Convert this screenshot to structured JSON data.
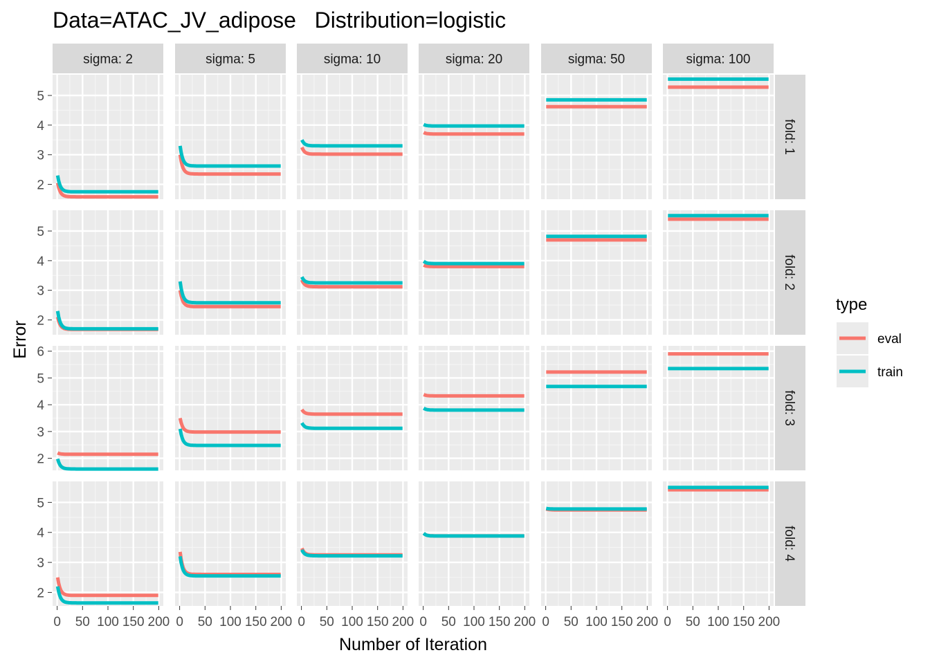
{
  "chart_data": {
    "type": "line",
    "title": "Data=ATAC_JV_adipose   Distribution=logistic",
    "xlabel": "Number of Iteration",
    "ylabel": "Error",
    "xlim": [
      0,
      200
    ],
    "x_ticks": [
      0,
      50,
      100,
      150,
      200
    ],
    "x_tick_labels": [
      "0",
      "50",
      "100",
      "150",
      "200"
    ],
    "grid": true,
    "legend": {
      "title": "type",
      "placement": "right",
      "entries": [
        {
          "label": "eval",
          "color": "#F8766D"
        },
        {
          "label": "train",
          "color": "#00BFC4"
        }
      ]
    },
    "columns": [
      "sigma: 2",
      "sigma: 5",
      "sigma: 10",
      "sigma: 20",
      "sigma: 50",
      "sigma: 100"
    ],
    "rows": [
      {
        "label": "fold: 1",
        "ylim": [
          1.5,
          5.7
        ],
        "y_ticks": [
          2,
          3,
          4,
          5
        ],
        "panels": [
          {
            "eval": {
              "start": 2.05,
              "end": 1.58
            },
            "train": {
              "start": 2.3,
              "end": 1.75
            }
          },
          {
            "eval": {
              "start": 3.0,
              "end": 2.35
            },
            "train": {
              "start": 3.3,
              "end": 2.62
            }
          },
          {
            "eval": {
              "start": 3.25,
              "end": 3.02
            },
            "train": {
              "start": 3.5,
              "end": 3.3
            }
          },
          {
            "eval": {
              "start": 3.75,
              "end": 3.7
            },
            "train": {
              "start": 4.02,
              "end": 3.97
            }
          },
          {
            "eval": {
              "start": 4.62,
              "end": 4.62
            },
            "train": {
              "start": 4.85,
              "end": 4.85
            }
          },
          {
            "eval": {
              "start": 5.28,
              "end": 5.28
            },
            "train": {
              "start": 5.55,
              "end": 5.55
            }
          }
        ]
      },
      {
        "label": "fold: 2",
        "ylim": [
          1.5,
          5.7
        ],
        "y_ticks": [
          2,
          3,
          4,
          5
        ],
        "panels": [
          {
            "eval": {
              "start": 2.1,
              "end": 1.68
            },
            "train": {
              "start": 2.3,
              "end": 1.7
            }
          },
          {
            "eval": {
              "start": 3.0,
              "end": 2.45
            },
            "train": {
              "start": 3.3,
              "end": 2.58
            }
          },
          {
            "eval": {
              "start": 3.35,
              "end": 3.12
            },
            "train": {
              "start": 3.45,
              "end": 3.25
            }
          },
          {
            "eval": {
              "start": 3.85,
              "end": 3.8
            },
            "train": {
              "start": 3.98,
              "end": 3.9
            }
          },
          {
            "eval": {
              "start": 4.7,
              "end": 4.7
            },
            "train": {
              "start": 4.82,
              "end": 4.82
            }
          },
          {
            "eval": {
              "start": 5.4,
              "end": 5.4
            },
            "train": {
              "start": 5.52,
              "end": 5.52
            }
          }
        ]
      },
      {
        "label": "fold: 3",
        "ylim": [
          1.55,
          6.2
        ],
        "y_ticks": [
          2,
          3,
          4,
          5,
          6
        ],
        "panels": [
          {
            "eval": {
              "start": 2.2,
              "end": 2.15
            },
            "train": {
              "start": 1.98,
              "end": 1.6
            }
          },
          {
            "eval": {
              "start": 3.5,
              "end": 2.98
            },
            "train": {
              "start": 3.1,
              "end": 2.48
            }
          },
          {
            "eval": {
              "start": 3.82,
              "end": 3.65
            },
            "train": {
              "start": 3.32,
              "end": 3.12
            }
          },
          {
            "eval": {
              "start": 4.38,
              "end": 4.33
            },
            "train": {
              "start": 3.87,
              "end": 3.8
            }
          },
          {
            "eval": {
              "start": 5.22,
              "end": 5.22
            },
            "train": {
              "start": 4.68,
              "end": 4.68
            }
          },
          {
            "eval": {
              "start": 5.9,
              "end": 5.9
            },
            "train": {
              "start": 5.35,
              "end": 5.35
            }
          }
        ]
      },
      {
        "label": "fold: 4",
        "ylim": [
          1.55,
          5.7
        ],
        "y_ticks": [
          2,
          3,
          4,
          5
        ],
        "panels": [
          {
            "eval": {
              "start": 2.5,
              "end": 1.9
            },
            "train": {
              "start": 2.2,
              "end": 1.65
            }
          },
          {
            "eval": {
              "start": 3.35,
              "end": 2.6
            },
            "train": {
              "start": 3.2,
              "end": 2.55
            }
          },
          {
            "eval": {
              "start": 3.47,
              "end": 3.25
            },
            "train": {
              "start": 3.42,
              "end": 3.22
            }
          },
          {
            "eval": {
              "start": 3.97,
              "end": 3.88
            },
            "train": {
              "start": 3.97,
              "end": 3.88
            }
          },
          {
            "eval": {
              "start": 4.78,
              "end": 4.75
            },
            "train": {
              "start": 4.8,
              "end": 4.78
            }
          },
          {
            "eval": {
              "start": 5.42,
              "end": 5.42
            },
            "train": {
              "start": 5.5,
              "end": 5.5
            }
          }
        ]
      }
    ]
  }
}
